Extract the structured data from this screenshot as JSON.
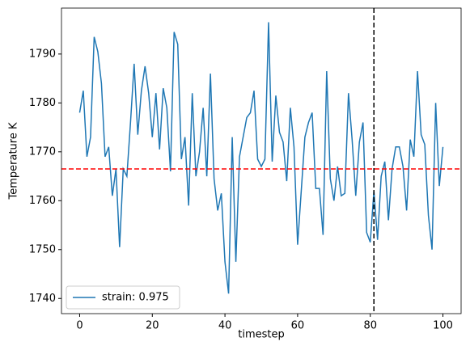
{
  "chart_data": {
    "type": "line",
    "xlabel": "timestep",
    "ylabel": "Temperature K",
    "x": [
      0,
      1,
      2,
      3,
      4,
      5,
      6,
      7,
      8,
      9,
      10,
      11,
      12,
      13,
      14,
      15,
      16,
      17,
      18,
      19,
      20,
      21,
      22,
      23,
      24,
      25,
      26,
      27,
      28,
      29,
      30,
      31,
      32,
      33,
      34,
      35,
      36,
      37,
      38,
      39,
      40,
      41,
      42,
      43,
      44,
      45,
      46,
      47,
      48,
      49,
      50,
      51,
      52,
      53,
      54,
      55,
      56,
      57,
      58,
      59,
      60,
      61,
      62,
      63,
      64,
      65,
      66,
      67,
      68,
      69,
      70,
      71,
      72,
      73,
      74,
      75,
      76,
      77,
      78,
      79,
      80,
      81,
      82,
      83,
      84,
      85,
      86,
      87,
      88,
      89,
      90,
      91,
      92,
      93,
      94,
      95,
      96,
      97,
      98,
      99,
      100
    ],
    "series": [
      {
        "name": "strain: 0.975",
        "color": "#1f77b4",
        "values": [
          1778,
          1782.5,
          1769,
          1773,
          1793.5,
          1790.5,
          1784,
          1769,
          1771,
          1761,
          1766.5,
          1750.5,
          1766.5,
          1765,
          1776,
          1788,
          1773.5,
          1782.5,
          1787.5,
          1782,
          1773,
          1782,
          1770.5,
          1783,
          1779,
          1766,
          1794.5,
          1792,
          1768.5,
          1773,
          1759,
          1782,
          1765,
          1770,
          1779,
          1765,
          1786,
          1764.5,
          1758,
          1761.5,
          1747.5,
          1741,
          1773,
          1747.5,
          1769,
          1773,
          1777,
          1778,
          1782.5,
          1768.5,
          1767,
          1768.5,
          1796.5,
          1768,
          1781.5,
          1774,
          1772,
          1764,
          1779,
          1771,
          1751,
          1762,
          1773,
          1776,
          1778,
          1762.5,
          1762.5,
          1753,
          1786.5,
          1764.5,
          1760,
          1767,
          1761,
          1761.5,
          1782,
          1772.5,
          1761,
          1772,
          1776,
          1753.5,
          1751.5,
          1762,
          1752,
          1765,
          1768,
          1756,
          1766.5,
          1771,
          1771,
          1767,
          1758,
          1772.5,
          1769,
          1786.5,
          1773.5,
          1771.5,
          1757,
          1750,
          1780,
          1763,
          1771
        ]
      }
    ],
    "hline": {
      "value": 1766.5,
      "color": "#ff0000"
    },
    "vline": {
      "value": 81,
      "color": "#000000"
    },
    "xlim": [
      -5,
      105
    ],
    "ylim": [
      1736.9,
      1799.4
    ],
    "xticks": [
      0,
      20,
      40,
      60,
      80,
      100
    ],
    "yticks": [
      1740,
      1750,
      1760,
      1770,
      1780,
      1790
    ],
    "legend": "lower left"
  }
}
